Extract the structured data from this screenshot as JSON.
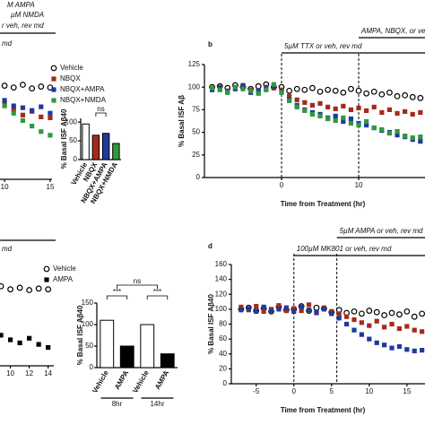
{
  "chart_data": [
    {
      "type": "line",
      "annotations": [
        "M AMPA",
        "µM NMDA",
        "r veh, rev md",
        "md"
      ],
      "x": [
        10,
        11,
        12,
        13,
        14,
        15
      ],
      "xlim": [
        9.5,
        15.2
      ],
      "xticks": [
        10,
        15
      ],
      "ylim": [
        0,
        125
      ],
      "series": [
        {
          "name": "Vehicle",
          "color": "#000000",
          "marker": "open-circle",
          "values": [
            102,
            100,
            103,
            99,
            101,
            100
          ]
        },
        {
          "name": "NBQX",
          "color": "#a52a1a",
          "marker": "square",
          "values": [
            82,
            76,
            70,
            74,
            68,
            67
          ]
        },
        {
          "name": "NBQX+AMPA",
          "color": "#1f3a9e",
          "marker": "square",
          "values": [
            86,
            80,
            78,
            75,
            79,
            72
          ]
        },
        {
          "name": "NBQX+NMDA",
          "color": "#2e9a3a",
          "marker": "square",
          "values": [
            80,
            72,
            64,
            58,
            52,
            48
          ]
        }
      ]
    },
    {
      "type": "bar",
      "ylabel": "% Basal ISF Aβ40",
      "categories": [
        "Vehicle",
        "NBQX",
        "NBQX+AMPA",
        "NBQX+NMDA"
      ],
      "values": [
        95,
        65,
        70,
        43
      ],
      "colors": [
        "#ffffff",
        "#a52a1a",
        "#1f3a9e",
        "#2e9a3a"
      ],
      "ylim": [
        0,
        110
      ],
      "yticks": [
        0,
        50,
        100
      ],
      "significance": [
        "ns"
      ]
    },
    {
      "type": "line",
      "panel_label": "b",
      "ylabel": "% Basal ISF Aβ",
      "xlabel": "Time from Treatment (hr)",
      "annotations": [
        "5µM TTX or veh, rev md",
        "AMPA, NBQX, or veh, rev md"
      ],
      "vlines": [
        0,
        10
      ],
      "x": [
        -9,
        -8,
        -7,
        -6,
        -5,
        -4,
        -3,
        -2,
        -1,
        0,
        1,
        2,
        3,
        4,
        5,
        6,
        7,
        8,
        9,
        10,
        11,
        12,
        13,
        14,
        15,
        16,
        17,
        18
      ],
      "xlim": [
        -10,
        18.6
      ],
      "xticks": [
        0,
        10
      ],
      "ylim": [
        0,
        125
      ],
      "yticks": [
        0,
        25,
        50,
        75,
        100,
        125
      ],
      "series": [
        {
          "color": "#000000",
          "marker": "open-circle",
          "values": [
            100,
            101,
            99,
            102,
            100,
            98,
            101,
            103,
            100,
            100,
            96,
            98,
            97,
            99,
            95,
            97,
            96,
            94,
            98,
            96,
            93,
            95,
            92,
            94,
            90,
            91,
            89,
            88
          ]
        },
        {
          "color": "#a52a1a",
          "marker": "square",
          "values": [
            98,
            100,
            96,
            99,
            101,
            97,
            95,
            100,
            99,
            97,
            90,
            86,
            83,
            80,
            82,
            78,
            76,
            79,
            75,
            77,
            74,
            78,
            72,
            75,
            71,
            73,
            70,
            72
          ]
        },
        {
          "color": "#1f3a9e",
          "marker": "square",
          "values": [
            97,
            99,
            95,
            98,
            102,
            94,
            96,
            99,
            101,
            95,
            86,
            80,
            75,
            72,
            70,
            66,
            68,
            62,
            65,
            60,
            58,
            55,
            52,
            50,
            47,
            45,
            42,
            40
          ]
        },
        {
          "color": "#2e9a3a",
          "marker": "square",
          "values": [
            99,
            97,
            94,
            100,
            98,
            96,
            93,
            97,
            103,
            94,
            85,
            78,
            74,
            70,
            68,
            65,
            63,
            66,
            60,
            58,
            62,
            55,
            53,
            49,
            51,
            46,
            44,
            45
          ]
        }
      ]
    },
    {
      "type": "line",
      "annotations": [
        "md"
      ],
      "x": [
        9,
        10,
        11,
        12,
        13,
        14
      ],
      "xlim": [
        8.9,
        14.6
      ],
      "xticks": [
        10,
        12,
        14
      ],
      "ylim": [
        0,
        150
      ],
      "series": [
        {
          "name": "Vehicle",
          "color": "#000000",
          "marker": "open-circle",
          "values": [
            104,
            100,
            102,
            99,
            101,
            100
          ]
        },
        {
          "name": "AMPA",
          "color": "#000000",
          "marker": "square",
          "values": [
            40,
            34,
            30,
            36,
            28,
            24
          ]
        }
      ]
    },
    {
      "type": "bar",
      "ylabel": "% Basal ISF Aβ40",
      "categories": [
        "Vehicle",
        "AMPA",
        "Vehicle",
        "AMPA"
      ],
      "groups": [
        "8hr",
        "14hr"
      ],
      "values": [
        110,
        50,
        100,
        32
      ],
      "colors": [
        "#ffffff",
        "#000000",
        "#ffffff",
        "#000000"
      ],
      "ylim": [
        0,
        150
      ],
      "yticks": [
        0,
        50,
        100,
        150
      ],
      "significance": [
        "***",
        "***",
        "ns"
      ]
    },
    {
      "type": "line",
      "panel_label": "d",
      "ylabel": "% Basal ISF Aβ40",
      "xlabel": "Time from Treatment (hr)",
      "annotations": [
        "100µM MK801 or veh, rev md",
        "5µM AMPA or veh, rev md"
      ],
      "vlines": [
        0,
        5.7
      ],
      "x": [
        -7,
        -6,
        -5,
        -4,
        -3,
        -2,
        -1,
        0,
        1,
        2,
        3,
        4,
        5,
        6,
        7,
        8,
        9,
        10,
        11,
        12,
        13,
        14,
        15,
        16,
        17
      ],
      "xlim": [
        -8.3,
        17.4
      ],
      "xticks": [
        -5,
        0,
        5,
        10,
        15
      ],
      "ylim": [
        0,
        160
      ],
      "yticks": [
        0,
        20,
        40,
        60,
        80,
        100,
        120,
        140,
        160
      ],
      "series": [
        {
          "color": "#000000",
          "marker": "open-circle",
          "values": [
            100,
            102,
            98,
            101,
            97,
            103,
            99,
            100,
            104,
            98,
            102,
            101,
            96,
            99,
            95,
            97,
            94,
            98,
            96,
            92,
            95,
            93,
            97,
            90,
            94
          ]
        },
        {
          "color": "#a52a1a",
          "marker": "square",
          "values": [
            103,
            99,
            104,
            97,
            100,
            105,
            98,
            101,
            98,
            106,
            95,
            102,
            97,
            94,
            90,
            86,
            82,
            78,
            84,
            76,
            80,
            74,
            77,
            72,
            70
          ]
        },
        {
          "color": "#1f3a9e",
          "marker": "square",
          "values": [
            99,
            101,
            97,
            103,
            98,
            100,
            102,
            97,
            103,
            99,
            96,
            100,
            94,
            88,
            80,
            72,
            66,
            60,
            55,
            52,
            48,
            50,
            46,
            44,
            45
          ]
        }
      ]
    }
  ]
}
